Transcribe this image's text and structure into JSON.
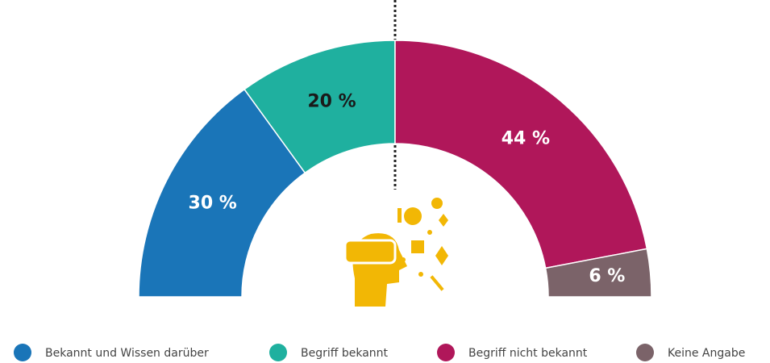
{
  "chart_data": {
    "type": "pie",
    "half_donut": true,
    "categories": [
      "Bekannt und Wissen darüber",
      "Begriff bekannt",
      "Begriff nicht bekannt",
      "Keine Angabe"
    ],
    "values": [
      30,
      20,
      44,
      6
    ],
    "value_labels": [
      "30 %",
      "20 %",
      "44 %",
      "6 %"
    ],
    "colors": [
      "#1a75b8",
      "#1fb09f",
      "#b0175a",
      "#7b6369"
    ],
    "label_colors": [
      "#ffffff",
      "#1a1a1a",
      "#ffffff",
      "#ffffff"
    ]
  }
}
